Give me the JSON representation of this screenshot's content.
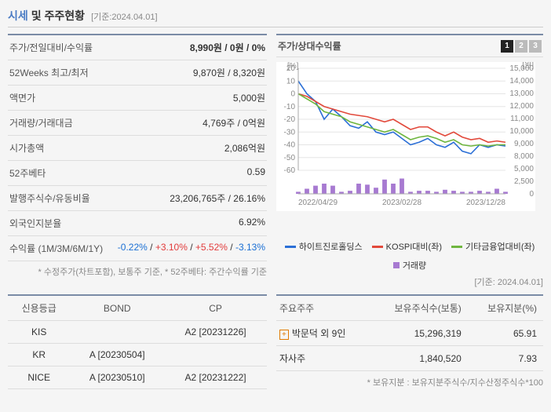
{
  "header": {
    "title_a": "시세",
    "title_b": "및 주주현황",
    "asof": "[기준:2024.04.01]"
  },
  "summary": [
    {
      "label": "주가/전일대비/수익률",
      "value": "8,990원 / 0원 / 0%",
      "bold": true
    },
    {
      "label": "52Weeks 최고/최저",
      "value": "9,870원 / 8,320원"
    },
    {
      "label": "액면가",
      "value": "5,000원"
    },
    {
      "label": "거래량/거래대금",
      "value": "4,769주 / 0억원"
    },
    {
      "label": "시가총액",
      "value": "2,086억원"
    },
    {
      "label": "52주베타",
      "value": "0.59"
    },
    {
      "label": "발행주식수/유동비율",
      "value": "23,206,765주 / 26.16%"
    },
    {
      "label": "외국인지분율",
      "value": "6.92%"
    }
  ],
  "returns": {
    "label": "수익률 (1M/3M/6M/1Y)",
    "parts": [
      {
        "text": "-0.22%",
        "cls": "neg"
      },
      {
        "text": " / "
      },
      {
        "text": "+3.10%",
        "cls": "pos"
      },
      {
        "text": " / "
      },
      {
        "text": "+5.52%",
        "cls": "pos"
      },
      {
        "text": " / "
      },
      {
        "text": "-3.13%",
        "cls": "neg"
      }
    ]
  },
  "footnote_left": "* 수정주가(차트포함), 보통주 기준, * 52주베타: 주간수익률 기준",
  "chart": {
    "title": "주가/상대수익률",
    "tabs": [
      "1",
      "2",
      "3"
    ],
    "active_tab": 0,
    "asof": "[기준: 2024.04.01]",
    "y_left_label": "[%]",
    "y_right_label": "[원]",
    "y_left": {
      "min": -60,
      "max": 20,
      "step": 10
    },
    "y_right": {
      "min": 0,
      "max": 15000,
      "step_labels": [
        15000,
        14000,
        13000,
        12000,
        11000,
        10000,
        9000,
        8000,
        5000,
        2500,
        0
      ]
    },
    "x_labels": [
      "2022/04/29",
      "2023/02/28",
      "2023/12/28"
    ],
    "bg": "#ffffff",
    "grid_color": "#e5e5e5",
    "axis_color": "#aaaaaa",
    "text_color": "#888888",
    "font_size": 10,
    "series": [
      {
        "name": "하이트진로홀딩스",
        "color": "#2b6fd6",
        "width": 1.6,
        "points": [
          10,
          0,
          -6,
          -20,
          -12,
          -18,
          -25,
          -27,
          -22,
          -30,
          -32,
          -30,
          -35,
          -40,
          -38,
          -35,
          -40,
          -42,
          -38,
          -45,
          -47,
          -40,
          -42,
          -40,
          -41
        ]
      },
      {
        "name": "KOSPI대비(좌)",
        "color": "#e2493b",
        "width": 1.6,
        "points": [
          0,
          -2,
          -6,
          -10,
          -12,
          -14,
          -16,
          -17,
          -18,
          -20,
          -22,
          -20,
          -24,
          -28,
          -26,
          -26,
          -30,
          -33,
          -30,
          -34,
          -36,
          -35,
          -38,
          -37,
          -38
        ]
      },
      {
        "name": "기타금융업대비(좌)",
        "color": "#6fb63f",
        "width": 1.6,
        "points": [
          0,
          -4,
          -8,
          -14,
          -16,
          -18,
          -22,
          -24,
          -26,
          -28,
          -30,
          -28,
          -32,
          -36,
          -34,
          -33,
          -35,
          -38,
          -36,
          -40,
          -41,
          -40,
          -41,
          -40,
          -40
        ]
      }
    ],
    "volume": {
      "name": "거래량",
      "color": "#a77ad1",
      "bars": [
        0.1,
        0.25,
        0.4,
        0.5,
        0.4,
        0.1,
        0.15,
        0.5,
        0.45,
        0.3,
        0.7,
        0.5,
        0.75,
        0.1,
        0.15,
        0.15,
        0.1,
        0.2,
        0.15,
        0.1,
        0.1,
        0.15,
        0.1,
        0.25,
        0.1
      ]
    }
  },
  "credit": {
    "headers": [
      "신용등급",
      "BOND",
      "CP"
    ],
    "rows": [
      {
        "agency": "KIS",
        "bond": "",
        "cp": "A2  [20231226]"
      },
      {
        "agency": "KR",
        "bond": "A  [20230504]",
        "cp": ""
      },
      {
        "agency": "NICE",
        "bond": "A  [20230510]",
        "cp": "A2  [20231222]"
      }
    ]
  },
  "shareholders": {
    "headers": [
      "주요주주",
      "보유주식수(보통)",
      "보유지분(%)"
    ],
    "rows": [
      {
        "name": "박문덕 외 9인",
        "shares": "15,296,319",
        "pct": "65.91",
        "expand": true
      },
      {
        "name": "자사주",
        "shares": "1,840,520",
        "pct": "7.93",
        "expand": false
      }
    ],
    "footnote": "* 보유지분 : 보유지분주식수/지수산정주식수*100"
  }
}
